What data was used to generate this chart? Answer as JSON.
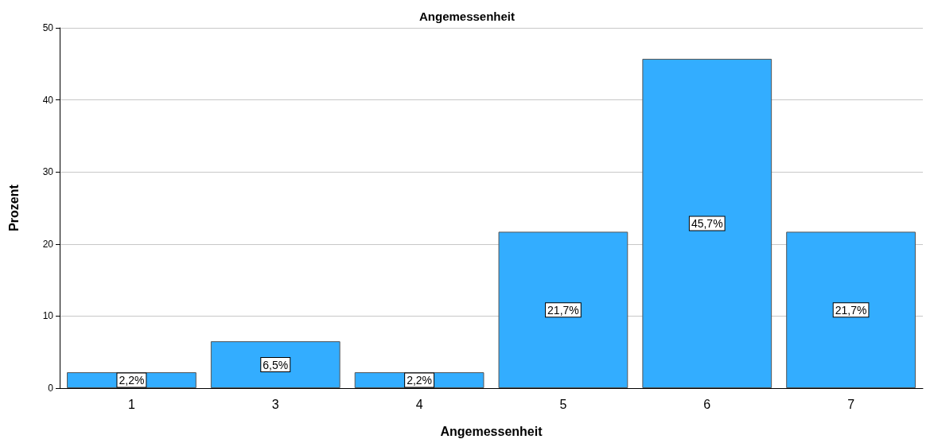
{
  "chart_data": {
    "type": "bar",
    "title": "Angemessenheit",
    "xlabel": "Angemessenheit",
    "ylabel": "Prozent",
    "categories": [
      "1",
      "3",
      "4",
      "5",
      "6",
      "7"
    ],
    "values": [
      2.2,
      6.5,
      2.2,
      21.7,
      45.7,
      21.7
    ],
    "value_labels": [
      "2,2%",
      "6,5%",
      "2,2%",
      "21,7%",
      "45,7%",
      "21,7%"
    ],
    "color": "#33adff",
    "ylim": [
      0,
      50
    ],
    "yticks": [
      0,
      10,
      20,
      30,
      40,
      50
    ],
    "grid": "y"
  }
}
